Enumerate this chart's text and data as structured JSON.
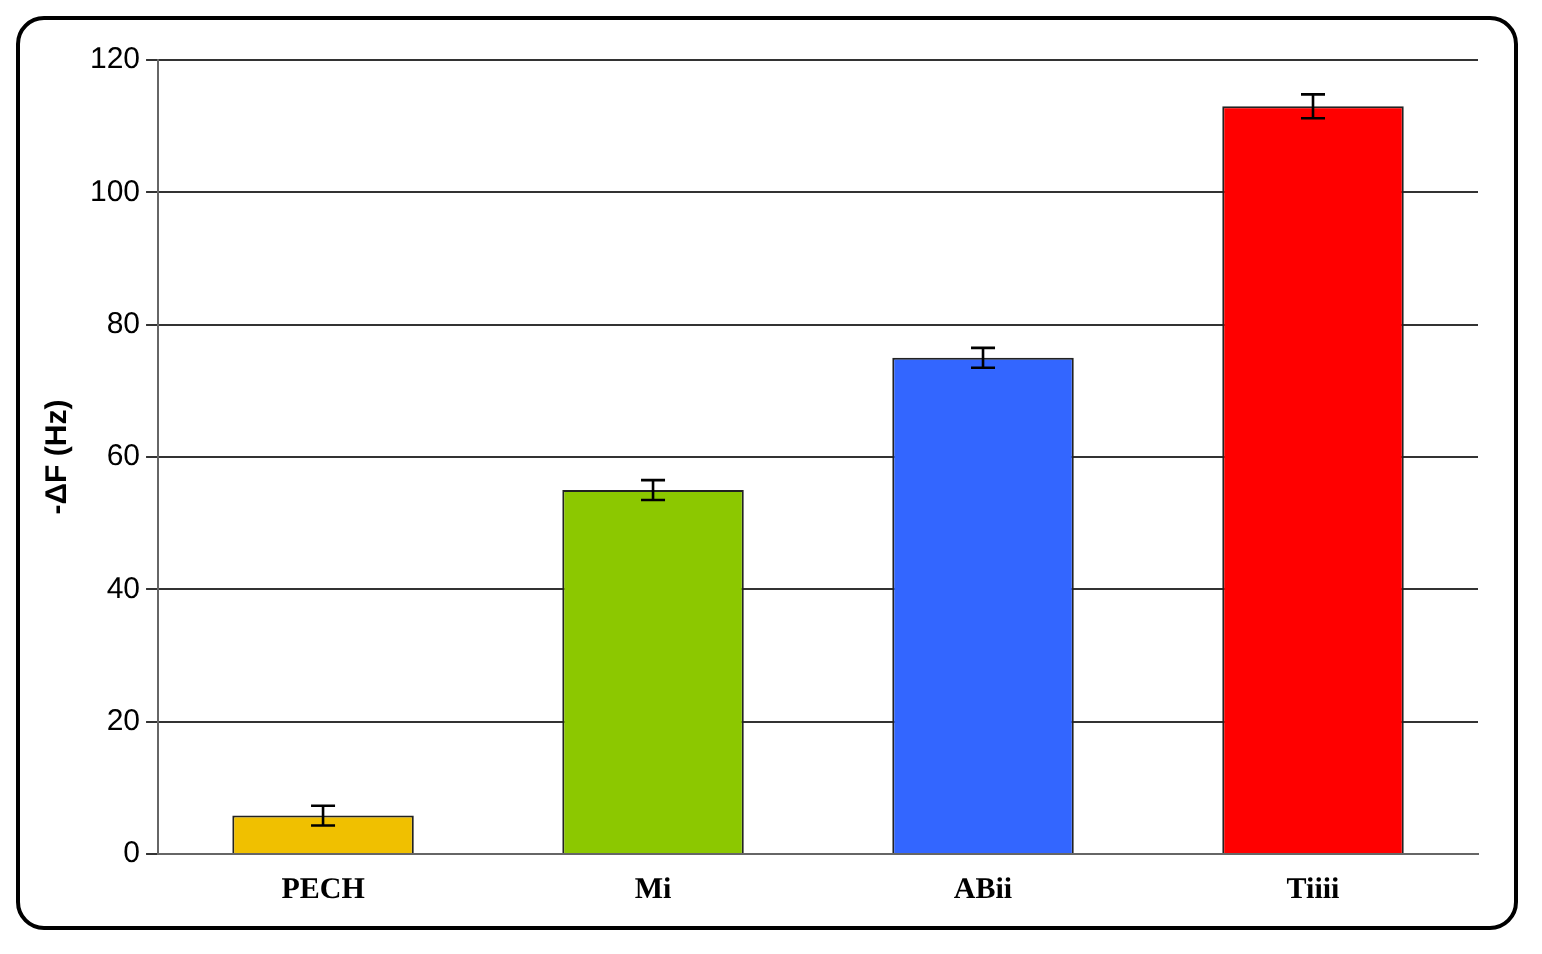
{
  "chart_data": {
    "type": "bar",
    "ylabel": "-ΔF (Hz)",
    "categories": [
      "PECH",
      "Mi",
      "ABii",
      "Tiiii"
    ],
    "values": [
      5.8,
      55,
      75,
      113
    ],
    "errors": [
      1.5,
      1.5,
      1.5,
      1.8
    ],
    "colors": [
      "#f0c000",
      "#8cc800",
      "#3366ff",
      "#ff0000"
    ],
    "ylim": [
      0,
      120
    ],
    "yticks": [
      0,
      20,
      40,
      60,
      80,
      100,
      120
    ],
    "grid": "y",
    "legend": false
  }
}
